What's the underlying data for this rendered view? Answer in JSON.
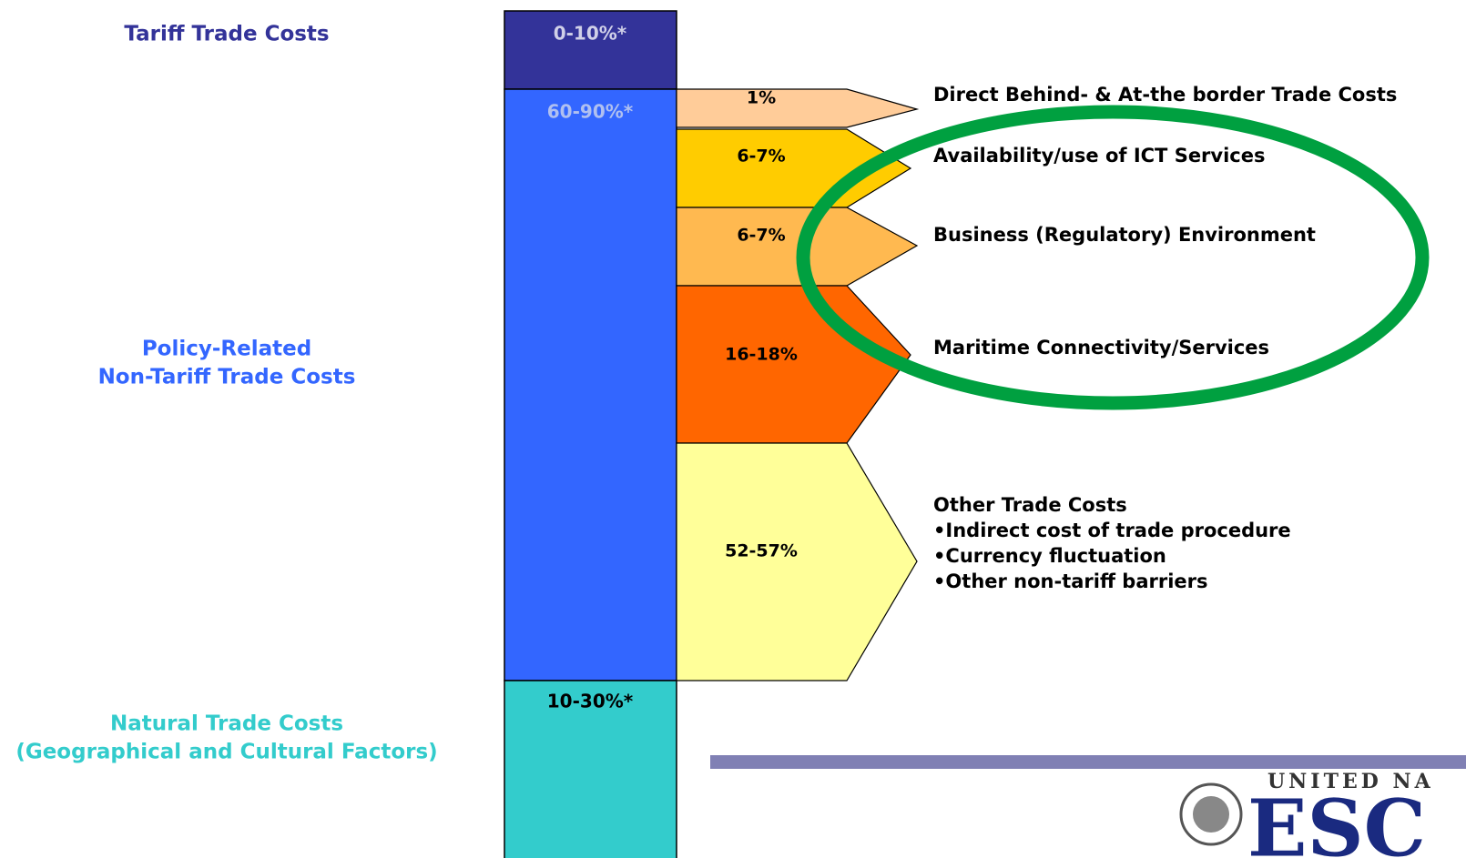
{
  "left_labels": {
    "tariff": [
      "Tariff Trade Costs"
    ],
    "policy": [
      "Policy-Related",
      "Non-Tariff Trade Costs"
    ],
    "natural": [
      "Natural Trade Costs",
      "(Geographical and Cultural Factors)"
    ]
  },
  "column": {
    "tariff": "0-10%*",
    "policy": "60-90%*",
    "natural": "10-30%*"
  },
  "arrows": [
    {
      "value": "1%",
      "description": [
        "Direct Behind- & At-the border Trade Costs"
      ]
    },
    {
      "value": "6-7%",
      "description": [
        "Availability/use of ICT Services"
      ]
    },
    {
      "value": "6-7%",
      "description": [
        "Business (Regulatory) Environment"
      ]
    },
    {
      "value": "16-18%",
      "description": [
        "Maritime Connectivity/Services"
      ]
    },
    {
      "value": "52-57%",
      "description": [
        "Other Trade Costs",
        "•Indirect cost of trade procedure",
        "•Currency fluctuation",
        "•Other non-tariff barriers"
      ]
    }
  ],
  "logo": {
    "top": "UNITED NA",
    "main": "ESC"
  }
}
